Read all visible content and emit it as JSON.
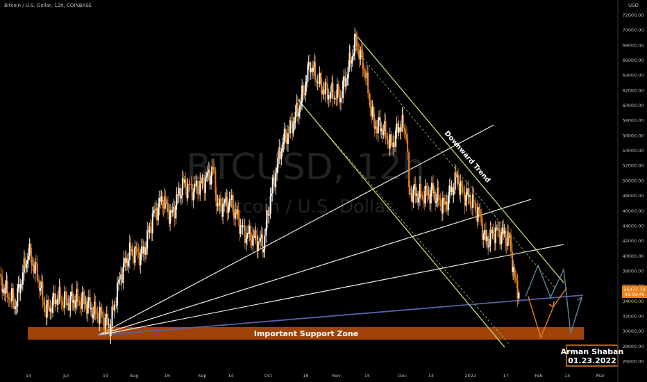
{
  "header": {
    "symbol_line": "Bitcoin / U.S. Dollar, 12h, COINBASE",
    "currency": "USD"
  },
  "watermark": {
    "big": "BTCUSD, 12h",
    "small": "Bitcoin / U.S. Dollar"
  },
  "annotations": {
    "downtrend": "Downward Trend",
    "support": "Important Support Zone",
    "author": "Arman Shaban",
    "date": "01.23.2022"
  },
  "price_tag": {
    "price": "35477.73",
    "timer": "06:09:46",
    "value": 35477.73
  },
  "colors": {
    "background": "#000000",
    "candle_up": "#ffffff",
    "candle_down": "#e8801a",
    "channel": "#b5d26a",
    "fan": "#f2eedc",
    "support_line": "#5564a8",
    "support_zone": "#b04a0c",
    "arrow_down": "#e8801a",
    "arrow_up": "#5a8a9a",
    "price_tag": "#e8801a"
  },
  "chart_data": {
    "type": "candlestick",
    "title": "Bitcoin / U.S. Dollar, 12h, COINBASE",
    "y_unit": "USD",
    "ylim": [
      25000,
      75000
    ],
    "y_ticks": [
      "72000.00",
      "70000.00",
      "68000.00",
      "66000.00",
      "64000.00",
      "62000.00",
      "60000.00",
      "58000.00",
      "56000.00",
      "54000.00",
      "52000.00",
      "50000.00",
      "48000.00",
      "46000.00",
      "44000.00",
      "42000.00",
      "40000.00",
      "38000.00",
      "36000.00",
      "34000.00",
      "32000.00",
      "30000.00",
      "28000.00",
      "26000.00"
    ],
    "x_ticks": [
      "14",
      "Jul",
      "19",
      "Aug",
      "16",
      "Sep",
      "14",
      "Oct",
      "18",
      "Nov",
      "15",
      "Dec",
      "14",
      "2022",
      "17",
      "Feb",
      "14",
      "Mar"
    ],
    "x_range": [
      "2021-06-01",
      "2022-03-09"
    ],
    "grid": false,
    "close_series": [
      [
        "2021-06-01",
        36500
      ],
      [
        "2021-06-08",
        33500
      ],
      [
        "2021-06-14",
        40500
      ],
      [
        "2021-06-18",
        37500
      ],
      [
        "2021-06-22",
        32500
      ],
      [
        "2021-06-27",
        34500
      ],
      [
        "2021-07-01",
        33800
      ],
      [
        "2021-07-05",
        34200
      ],
      [
        "2021-07-10",
        33800
      ],
      [
        "2021-07-14",
        32500
      ],
      [
        "2021-07-18",
        31800
      ],
      [
        "2021-07-21",
        30500
      ],
      [
        "2021-07-26",
        37500
      ],
      [
        "2021-07-30",
        40500
      ],
      [
        "2021-08-05",
        40200
      ],
      [
        "2021-08-10",
        45500
      ],
      [
        "2021-08-14",
        47500
      ],
      [
        "2021-08-18",
        45200
      ],
      [
        "2021-08-23",
        49500
      ],
      [
        "2021-08-28",
        48800
      ],
      [
        "2021-09-01",
        49500
      ],
      [
        "2021-09-06",
        51500
      ],
      [
        "2021-09-08",
        46500
      ],
      [
        "2021-09-14",
        47200
      ],
      [
        "2021-09-20",
        43000
      ],
      [
        "2021-09-24",
        42500
      ],
      [
        "2021-09-29",
        41500
      ],
      [
        "2021-10-02",
        47800
      ],
      [
        "2021-10-07",
        54500
      ],
      [
        "2021-10-12",
        57500
      ],
      [
        "2021-10-16",
        60500
      ],
      [
        "2021-10-20",
        65500
      ],
      [
        "2021-10-25",
        62500
      ],
      [
        "2021-10-29",
        61500
      ],
      [
        "2021-11-03",
        61200
      ],
      [
        "2021-11-08",
        66500
      ],
      [
        "2021-11-10",
        68500
      ],
      [
        "2021-11-14",
        64500
      ],
      [
        "2021-11-18",
        57500
      ],
      [
        "2021-11-22",
        57000
      ],
      [
        "2021-11-26",
        54500
      ],
      [
        "2021-11-30",
        57500
      ],
      [
        "2021-12-03",
        56500
      ],
      [
        "2021-12-04",
        48500
      ],
      [
        "2021-12-10",
        48000
      ],
      [
        "2021-12-15",
        48500
      ],
      [
        "2021-12-20",
        46500
      ],
      [
        "2021-12-26",
        50500
      ],
      [
        "2021-12-28",
        48500
      ],
      [
        "2022-01-01",
        47500
      ],
      [
        "2022-01-05",
        45500
      ],
      [
        "2022-01-08",
        41800
      ],
      [
        "2022-01-12",
        43200
      ],
      [
        "2022-01-15",
        43000
      ],
      [
        "2022-01-19",
        42000
      ],
      [
        "2022-01-21",
        36800
      ],
      [
        "2022-01-23",
        35477.73
      ]
    ]
  }
}
